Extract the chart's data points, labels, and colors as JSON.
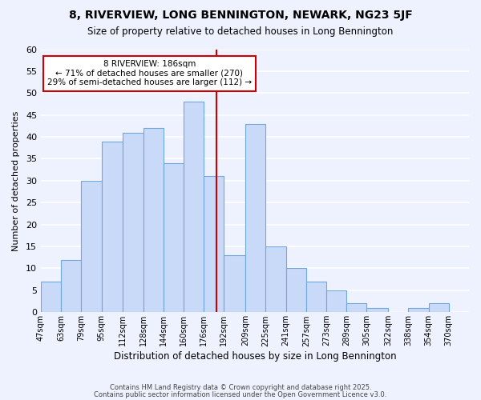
{
  "title": "8, RIVERVIEW, LONG BENNINGTON, NEWARK, NG23 5JF",
  "subtitle": "Size of property relative to detached houses in Long Bennington",
  "xlabel": "Distribution of detached houses by size in Long Bennington",
  "ylabel": "Number of detached properties",
  "bin_labels": [
    "47sqm",
    "63sqm",
    "79sqm",
    "95sqm",
    "112sqm",
    "128sqm",
    "144sqm",
    "160sqm",
    "176sqm",
    "192sqm",
    "209sqm",
    "225sqm",
    "241sqm",
    "257sqm",
    "273sqm",
    "289sqm",
    "305sqm",
    "322sqm",
    "338sqm",
    "354sqm",
    "370sqm"
  ],
  "bin_left_edges": [
    47,
    63,
    79,
    95,
    112,
    128,
    144,
    160,
    176,
    192,
    209,
    225,
    241,
    257,
    273,
    289,
    305,
    322,
    338,
    354
  ],
  "bin_right_edges": [
    63,
    79,
    95,
    112,
    128,
    144,
    160,
    176,
    192,
    209,
    225,
    241,
    257,
    273,
    289,
    305,
    322,
    338,
    354,
    370
  ],
  "bar_heights": [
    7,
    12,
    30,
    39,
    41,
    42,
    34,
    48,
    31,
    13,
    43,
    15,
    10,
    7,
    5,
    2,
    1,
    0,
    1,
    2
  ],
  "bar_color": "#c9daf8",
  "bar_edge_color": "#6fa8dc",
  "property_value": 186,
  "vline_color": "#cc0000",
  "annotation_title": "8 RIVERVIEW: 186sqm",
  "annotation_line1": "← 71% of detached houses are smaller (270)",
  "annotation_line2": "29% of semi-detached houses are larger (112) →",
  "annotation_box_edge": "#cc0000",
  "xlim": [
    47,
    386
  ],
  "ylim": [
    0,
    60
  ],
  "yticks": [
    0,
    5,
    10,
    15,
    20,
    25,
    30,
    35,
    40,
    45,
    50,
    55,
    60
  ],
  "all_tick_positions": [
    47,
    63,
    79,
    95,
    112,
    128,
    144,
    160,
    176,
    192,
    209,
    225,
    241,
    257,
    273,
    289,
    305,
    322,
    338,
    354,
    370
  ],
  "background_color": "#eef2ff",
  "grid_color": "#ffffff",
  "footer1": "Contains HM Land Registry data © Crown copyright and database right 2025.",
  "footer2": "Contains public sector information licensed under the Open Government Licence v3.0."
}
